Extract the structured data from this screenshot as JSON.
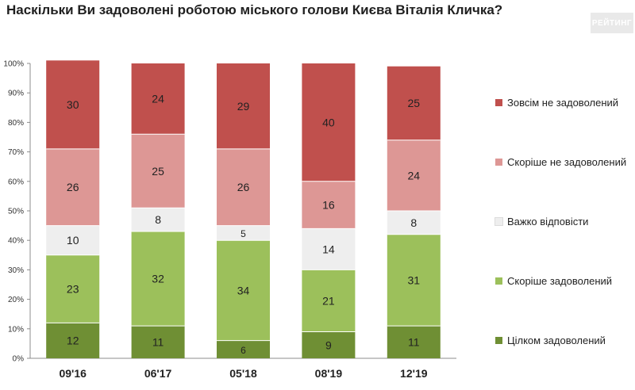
{
  "title": "Наскільки Ви задоволені роботою міського голови Києва Віталія Кличка?",
  "brand": "РЕЙТИНГ",
  "chart_data": {
    "type": "bar",
    "stacked": true,
    "orientation": "vertical",
    "categories": [
      "09'16",
      "06'17",
      "05'18",
      "08'19",
      "12'19"
    ],
    "y_ticks": [
      "0%",
      "10%",
      "20%",
      "30%",
      "40%",
      "50%",
      "60%",
      "70%",
      "80%",
      "90%",
      "100%"
    ],
    "ylim": [
      0,
      100
    ],
    "legend_position": "right",
    "series": [
      {
        "name": "Цілком задоволений",
        "color": "#6f8f34",
        "values": [
          12,
          11,
          6,
          9,
          11
        ]
      },
      {
        "name": "Скоріше задоволений",
        "color": "#9cc05b",
        "values": [
          23,
          32,
          34,
          21,
          31
        ]
      },
      {
        "name": "Важко відповісти",
        "color": "#eeeeee",
        "values": [
          10,
          8,
          5,
          14,
          8
        ]
      },
      {
        "name": "Скоріше не задоволений",
        "color": "#dd9795",
        "values": [
          26,
          25,
          26,
          16,
          24
        ]
      },
      {
        "name": "Зовсім не задоволений",
        "color": "#c0504d",
        "values": [
          30,
          24,
          29,
          40,
          25
        ]
      }
    ]
  }
}
